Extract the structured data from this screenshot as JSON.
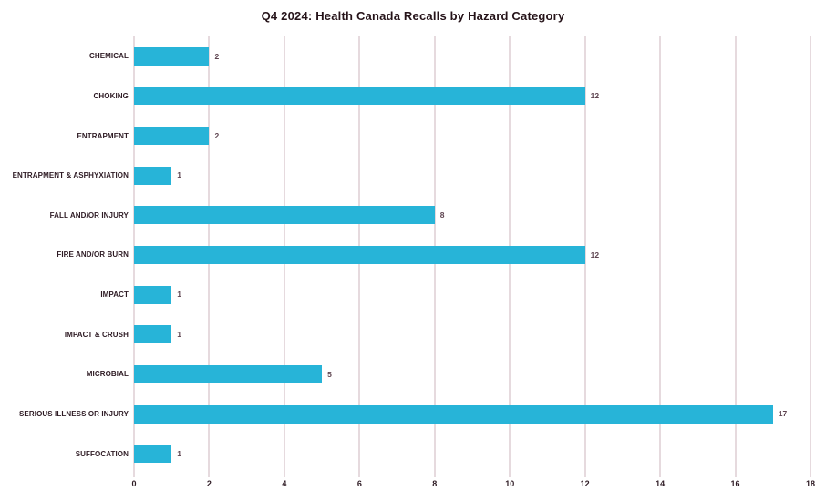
{
  "title": "Q4 2024: Health Canada Recalls by Hazard Category",
  "colors": {
    "bar": "#27b4d8",
    "gridline": "#e6dade",
    "title_text": "#251319",
    "category_text": "#2e1b24",
    "value_text": "#5e4450",
    "background": "#ffffff"
  },
  "chart_data": {
    "type": "bar",
    "orientation": "horizontal",
    "title": "Q4 2024: Health Canada Recalls by Hazard Category",
    "categories": [
      "CHEMICAL",
      "CHOKING",
      "ENTRAPMENT",
      "ENTRAPMENT & ASPHYXIATION",
      "FALL AND/OR INJURY",
      "FIRE AND/OR BURN",
      "IMPACT",
      "IMPACT & CRUSH",
      "MICROBIAL",
      "SERIOUS ILLNESS OR INJURY",
      "SUFFOCATION"
    ],
    "values": [
      2,
      12,
      2,
      1,
      8,
      12,
      1,
      1,
      5,
      17,
      1
    ],
    "data_labels": [
      "2",
      "12",
      "2",
      "1",
      "8",
      "12",
      "1",
      "1",
      "5",
      "17",
      "1"
    ],
    "xlabel": "",
    "ylabel": "",
    "xlim": [
      0,
      18
    ],
    "x_ticks": [
      0,
      2,
      4,
      6,
      8,
      10,
      12,
      14,
      16,
      18
    ],
    "grid": "vertical",
    "legend": "none"
  }
}
